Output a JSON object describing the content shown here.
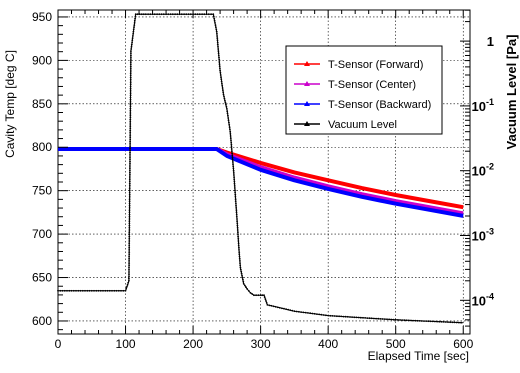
{
  "chart_data": {
    "type": "line",
    "xlabel": "Elapsed Time [sec]",
    "ylabel": "Cavity Temp [deg C]",
    "y2label": "Vacuum Level [Pa]",
    "xlim": [
      0,
      610
    ],
    "ylim": [
      585,
      958
    ],
    "y2lim_log10": [
      -4.52,
      0.48
    ],
    "y2_scale": "log",
    "grid": true,
    "legend_position": "top-right",
    "x_ticks": [
      "0",
      "100",
      "200",
      "300",
      "400",
      "500",
      "600"
    ],
    "y_ticks": [
      "600",
      "650",
      "700",
      "750",
      "800",
      "850",
      "900",
      "950"
    ],
    "y2_ticks": [
      {
        "base": "10",
        "exp": "-4"
      },
      {
        "base": "10",
        "exp": "-3"
      },
      {
        "base": "10",
        "exp": "-2"
      },
      {
        "base": "10",
        "exp": "-1"
      },
      {
        "base": "1",
        "exp": ""
      }
    ],
    "series": [
      {
        "name": "T-Sensor (Forward)",
        "color": "#ff0000",
        "axis": "left",
        "x": [
          0,
          100,
          200,
          235,
          250,
          300,
          350,
          400,
          450,
          500,
          550,
          600
        ],
        "y": [
          798,
          798,
          798,
          798,
          794,
          782,
          771,
          762,
          753,
          745,
          738,
          731
        ]
      },
      {
        "name": "T-Sensor (Center)",
        "color": "#cc00cc",
        "axis": "left",
        "x": [
          0,
          100,
          200,
          235,
          250,
          300,
          350,
          400,
          450,
          500,
          550,
          600
        ],
        "y": [
          798,
          798,
          798,
          798,
          792,
          777,
          765,
          755,
          746,
          738,
          731,
          724
        ]
      },
      {
        "name": "T-Sensor (Backward)",
        "color": "#0000ff",
        "axis": "left",
        "x": [
          0,
          100,
          200,
          235,
          250,
          300,
          350,
          400,
          450,
          500,
          550,
          600
        ],
        "y": [
          798,
          798,
          798,
          798,
          790,
          774,
          762,
          752,
          743,
          735,
          728,
          721
        ]
      },
      {
        "name": "Vacuum Level",
        "color": "#000000",
        "axis": "right",
        "x": [
          0,
          50,
          100,
          105,
          108,
          115,
          130,
          200,
          230,
          235,
          240,
          245,
          250,
          255,
          260,
          262,
          265,
          268,
          270,
          275,
          280,
          285,
          290,
          300,
          305,
          310,
          350,
          400,
          500,
          600
        ],
        "y": [
          0.00014,
          0.00014,
          0.00014,
          0.0002,
          0.7,
          2.6,
          2.6,
          2.6,
          2.6,
          1.4,
          0.35,
          0.15,
          0.09,
          0.04,
          0.01,
          0.005,
          0.0018,
          0.0006,
          0.00032,
          0.00018,
          0.00015,
          0.00013,
          0.00012,
          0.00012,
          0.00012,
          8.5e-05,
          6.8e-05,
          5.8e-05,
          5e-05,
          4.5e-05
        ]
      }
    ]
  }
}
